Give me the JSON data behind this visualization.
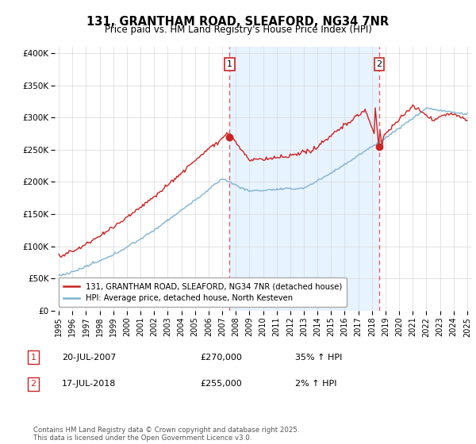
{
  "title": "131, GRANTHAM ROAD, SLEAFORD, NG34 7NR",
  "subtitle": "Price paid vs. HM Land Registry's House Price Index (HPI)",
  "legend_line1": "131, GRANTHAM ROAD, SLEAFORD, NG34 7NR (detached house)",
  "legend_line2": "HPI: Average price, detached house, North Kesteven",
  "sale1_date": "20-JUL-2007",
  "sale1_price": "£270,000",
  "sale1_hpi": "35% ↑ HPI",
  "sale1_year": 2007.54,
  "sale2_date": "17-JUL-2018",
  "sale2_price": "£255,000",
  "sale2_hpi": "2% ↑ HPI",
  "sale2_year": 2018.54,
  "hpi_color": "#7fb3d3",
  "hpi_fill_color": "#ddeeff",
  "price_color": "#cc2222",
  "vline_color": "#e06060",
  "dot_color": "#cc2222",
  "footer": "Contains HM Land Registry data © Crown copyright and database right 2025.\nThis data is licensed under the Open Government Licence v3.0.",
  "ylim": [
    0,
    410000
  ],
  "xlim": [
    1994.7,
    2025.3
  ],
  "yticks": [
    0,
    50000,
    100000,
    150000,
    200000,
    250000,
    300000,
    350000,
    400000
  ],
  "ytick_labels": [
    "£0",
    "£50K",
    "£100K",
    "£150K",
    "£200K",
    "£250K",
    "£300K",
    "£350K",
    "£400K"
  ],
  "xticks": [
    1995,
    1996,
    1997,
    1998,
    1999,
    2000,
    2001,
    2002,
    2003,
    2004,
    2005,
    2006,
    2007,
    2008,
    2009,
    2010,
    2011,
    2012,
    2013,
    2014,
    2015,
    2016,
    2017,
    2018,
    2019,
    2020,
    2021,
    2022,
    2023,
    2024,
    2025
  ]
}
